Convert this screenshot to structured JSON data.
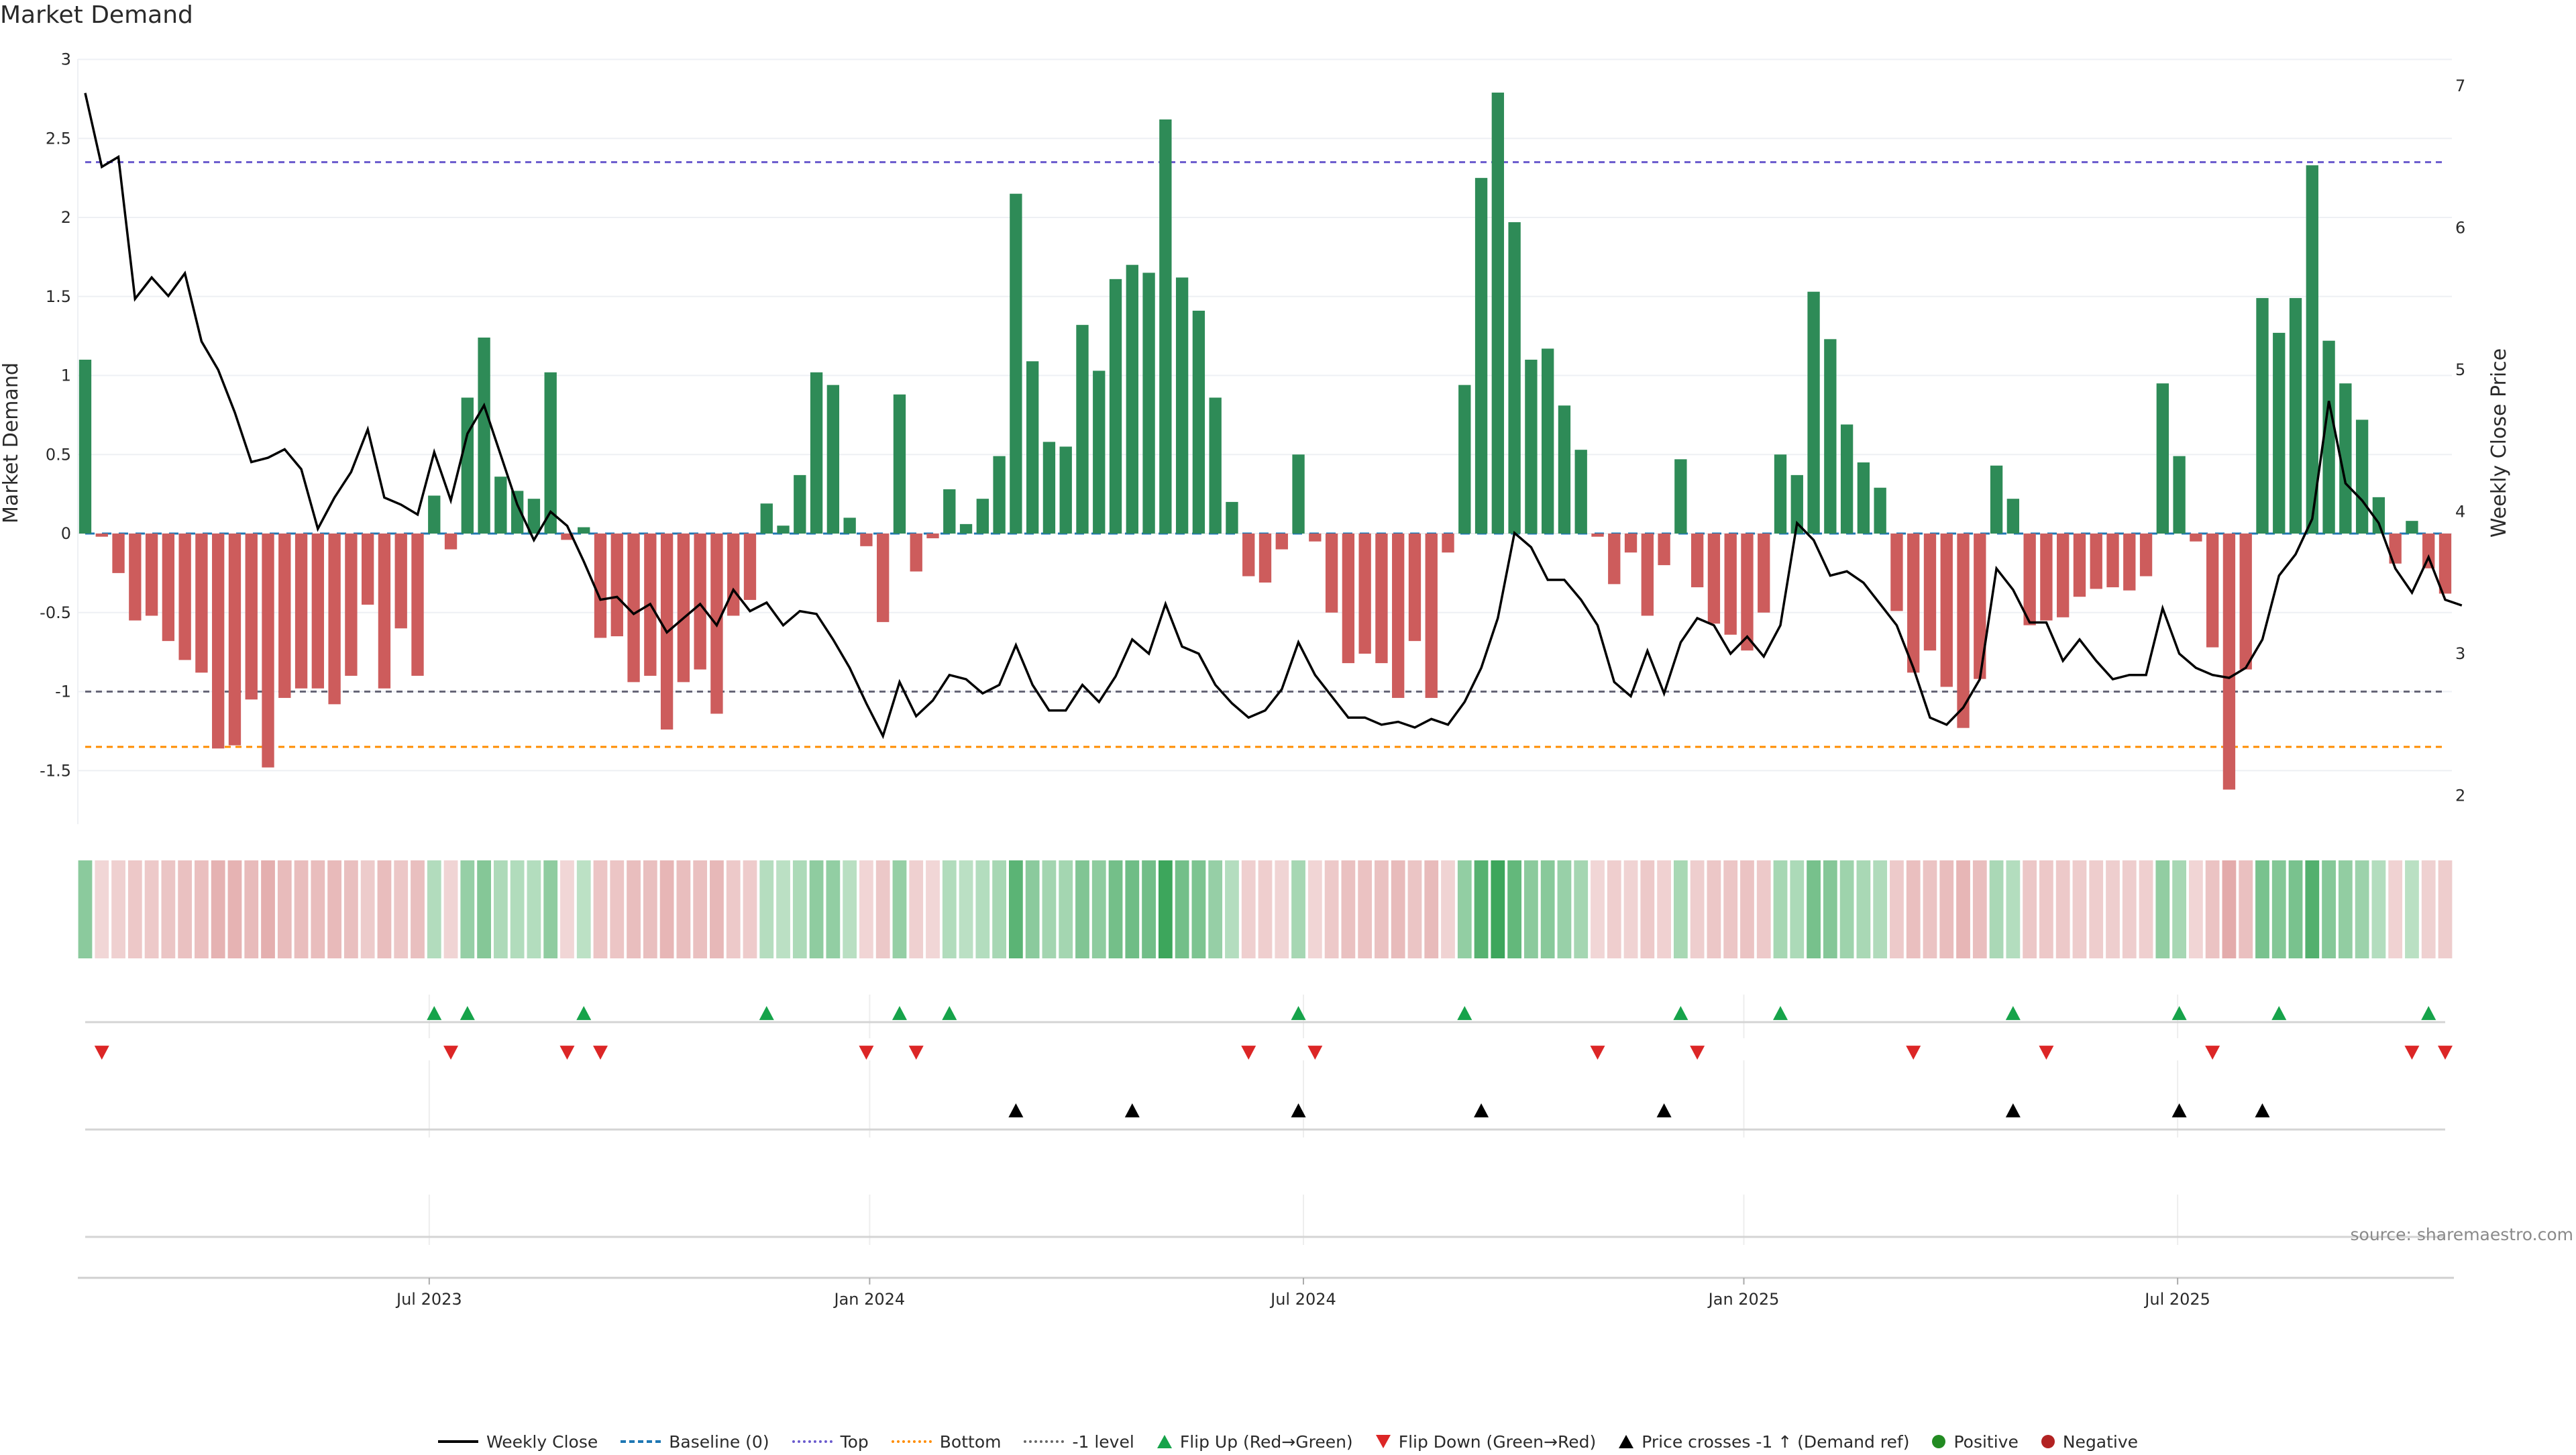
{
  "title": "Market Demand",
  "source": "source: sharemaestro.com",
  "colors": {
    "positive": "#2e8b57",
    "negative": "#cd5c5c",
    "line": "#000000",
    "baseline": "#1f77b4",
    "top": "#6a5acd",
    "bottom": "#ff8c00",
    "minus1": "#555555",
    "flip_up": "#16a34a",
    "flip_down": "#dc2626",
    "price_cross": "#000000",
    "legend_positive": "#228b22",
    "legend_negative": "#b22222"
  },
  "legend": [
    {
      "label": "Weekly Close",
      "kind": "solid",
      "color": "#000000"
    },
    {
      "label": "Baseline (0)",
      "kind": "dash",
      "color": "#1f77b4"
    },
    {
      "label": "Top",
      "kind": "dot",
      "color": "#6a5acd"
    },
    {
      "label": "Bottom",
      "kind": "dot",
      "color": "#ff8c00"
    },
    {
      "label": "-1 level",
      "kind": "dot",
      "color": "#666666"
    },
    {
      "label": "Flip Up (Red→Green)",
      "kind": "tri-up",
      "color": "#16a34a"
    },
    {
      "label": "Flip Down (Green→Red)",
      "kind": "tri-down",
      "color": "#dc2626"
    },
    {
      "label": "Price crosses -1 ↑ (Demand ref)",
      "kind": "tri-up",
      "color": "#000000"
    },
    {
      "label": "Positive",
      "kind": "circle",
      "color": "#228b22"
    },
    {
      "label": "Negative",
      "kind": "circle",
      "color": "#b22222"
    }
  ],
  "chart_data": {
    "type": "bar",
    "title": "Market Demand",
    "ylabel": "Market Demand",
    "y2label": "Weekly Close Price",
    "ylim": [
      -1.88,
      3.0
    ],
    "y2lim": [
      1.88,
      7.2
    ],
    "yticks": [
      "3",
      "2.5",
      "2",
      "1.5",
      "1",
      "0.5",
      "0",
      "-0.5",
      "-1",
      "-1.5"
    ],
    "yticks_values": [
      3,
      2.5,
      2,
      1.5,
      1,
      0.5,
      0,
      -0.5,
      -1,
      -1.5
    ],
    "y2ticks": [
      "7",
      "6",
      "5",
      "4",
      "3",
      "2"
    ],
    "y2ticks_values": [
      7,
      6,
      5,
      4,
      3,
      2
    ],
    "xticks": [
      {
        "label": "Jul 2023",
        "index": 20.7
      },
      {
        "label": "Jan 2024",
        "index": 47.2
      },
      {
        "label": "Jul 2024",
        "index": 73.3
      },
      {
        "label": "Jan 2025",
        "index": 99.8
      },
      {
        "label": "Jul 2025",
        "index": 125.9
      }
    ],
    "reference_lines": {
      "baseline": 0,
      "top": 2.35,
      "bottom": -1.35,
      "minus1": -1
    },
    "series": [
      {
        "name": "Market Demand",
        "values": [
          1.1,
          -0.02,
          -0.25,
          -0.55,
          -0.52,
          -0.68,
          -0.8,
          -0.88,
          -1.36,
          -1.34,
          -1.05,
          -1.48,
          -1.04,
          -0.98,
          -0.98,
          -1.08,
          -0.9,
          -0.45,
          -0.98,
          -0.6,
          -0.9,
          0.24,
          -0.1,
          0.86,
          1.24,
          0.36,
          0.27,
          0.22,
          1.02,
          -0.04,
          0.04,
          -0.66,
          -0.65,
          -0.94,
          -0.9,
          -1.24,
          -0.94,
          -0.86,
          -1.14,
          -0.52,
          -0.42,
          0.19,
          0.05,
          0.37,
          1.02,
          0.94,
          0.1,
          -0.08,
          -0.56,
          0.88,
          -0.24,
          -0.03,
          0.28,
          0.06,
          0.22,
          0.49,
          2.15,
          1.09,
          0.58,
          0.55,
          1.32,
          1.03,
          1.61,
          1.7,
          1.65,
          2.62,
          1.62,
          1.41,
          0.86,
          0.2,
          -0.27,
          -0.31,
          -0.1,
          0.5,
          -0.05,
          -0.5,
          -0.82,
          -0.76,
          -0.82,
          -1.04,
          -0.68,
          -1.04,
          -0.12,
          0.94,
          2.25,
          2.79,
          1.97,
          1.1,
          1.17,
          0.81,
          0.53,
          -0.02,
          -0.32,
          -0.12,
          -0.52,
          -0.2,
          0.47,
          -0.34,
          -0.57,
          -0.64,
          -0.74,
          -0.5,
          0.5,
          0.37,
          1.53,
          1.23,
          0.69,
          0.45,
          0.29,
          -0.49,
          -0.88,
          -0.74,
          -0.97,
          -1.23,
          -0.92,
          0.43,
          0.22,
          -0.58,
          -0.55,
          -0.53,
          -0.4,
          -0.35,
          -0.34,
          -0.36,
          -0.27,
          0.95,
          0.49,
          -0.05,
          -0.72,
          -1.62,
          -0.86,
          1.49,
          1.27,
          1.49,
          2.33,
          1.22,
          0.95,
          0.72,
          0.23,
          -0.19,
          0.08,
          -0.22,
          -0.38
        ]
      },
      {
        "name": "Weekly Close",
        "axis": "right",
        "values": [
          6.95,
          6.43,
          6.5,
          5.5,
          5.65,
          5.52,
          5.68,
          5.2,
          5.0,
          4.7,
          4.35,
          4.38,
          4.44,
          4.3,
          3.88,
          4.1,
          4.28,
          4.58,
          4.1,
          4.05,
          3.98,
          4.42,
          4.08,
          4.55,
          4.75,
          4.4,
          4.05,
          3.8,
          4.0,
          3.9,
          3.65,
          3.38,
          3.4,
          3.28,
          3.35,
          3.15,
          3.25,
          3.35,
          3.2,
          3.45,
          3.3,
          3.36,
          3.2,
          3.3,
          3.28,
          3.1,
          2.9,
          2.65,
          2.42,
          2.8,
          2.56,
          2.67,
          2.85,
          2.82,
          2.72,
          2.78,
          3.06,
          2.78,
          2.6,
          2.6,
          2.78,
          2.66,
          2.84,
          3.1,
          3.0,
          3.35,
          3.05,
          3.0,
          2.78,
          2.65,
          2.55,
          2.6,
          2.75,
          3.08,
          2.85,
          2.7,
          2.55,
          2.55,
          2.5,
          2.52,
          2.48,
          2.54,
          2.5,
          2.66,
          2.9,
          3.25,
          3.85,
          3.75,
          3.52,
          3.52,
          3.38,
          3.2,
          2.8,
          2.7,
          3.02,
          2.72,
          3.08,
          3.25,
          3.2,
          3.0,
          3.12,
          2.98,
          3.2,
          3.92,
          3.8,
          3.55,
          3.58,
          3.5,
          3.35,
          3.2,
          2.9,
          2.55,
          2.5,
          2.62,
          2.82,
          3.6,
          3.45,
          3.22,
          3.22,
          2.95,
          3.1,
          2.95,
          2.82,
          2.85,
          2.85,
          3.32,
          3.0,
          2.9,
          2.85,
          2.83,
          2.9,
          3.1,
          3.55,
          3.7,
          3.95,
          4.78,
          4.2,
          4.08,
          3.92,
          3.6,
          3.43,
          3.68,
          3.38,
          3.34
        ]
      }
    ],
    "heat_strip": {
      "description_values": "same as Market Demand"
    },
    "flip_up_indices": [
      21,
      23,
      30,
      41,
      49,
      52,
      73,
      83,
      96,
      102,
      116,
      126,
      132,
      141
    ],
    "flip_down_indices": [
      1,
      22,
      29,
      31,
      47,
      50,
      70,
      74,
      91,
      97,
      110,
      118,
      128,
      140,
      142
    ],
    "price_cross_indices": [
      56,
      63,
      73,
      84,
      95,
      116,
      126,
      131
    ]
  }
}
